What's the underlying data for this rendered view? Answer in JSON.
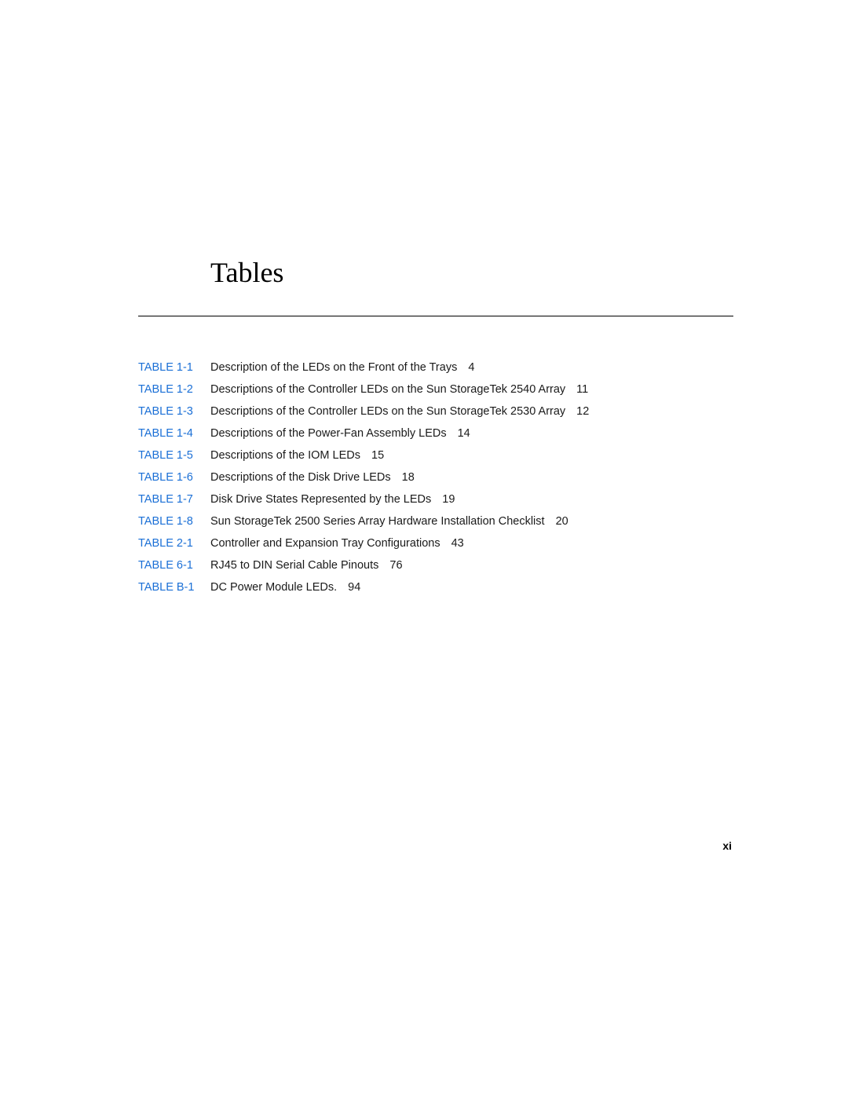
{
  "title": "Tables",
  "page_number": "xi",
  "colors": {
    "link": "#1a6fd6",
    "text": "#1a1a1a",
    "rule": "#000000",
    "background": "#ffffff"
  },
  "typography": {
    "title_font": "Palatino Linotype",
    "title_size_pt": 27,
    "body_font": "Arial",
    "body_size_pt": 11,
    "pageno_size_pt": 10,
    "pageno_weight": "bold"
  },
  "entries": [
    {
      "label": "TABLE 1-1",
      "desc": "Description of the LEDs on the Front of the Trays",
      "page": "4"
    },
    {
      "label": "TABLE 1-2",
      "desc": "Descriptions of the Controller LEDs on the Sun StorageTek 2540 Array",
      "page": "11"
    },
    {
      "label": "TABLE 1-3",
      "desc": "Descriptions of the Controller LEDs on the Sun StorageTek 2530 Array",
      "page": "12"
    },
    {
      "label": "TABLE 1-4",
      "desc": "Descriptions of the Power-Fan Assembly LEDs",
      "page": "14"
    },
    {
      "label": "TABLE 1-5",
      "desc": "Descriptions of the IOM LEDs",
      "page": "15"
    },
    {
      "label": "TABLE 1-6",
      "desc": "Descriptions of the Disk Drive LEDs",
      "page": "18"
    },
    {
      "label": "TABLE 1-7",
      "desc": "Disk Drive States Represented by the LEDs",
      "page": "19"
    },
    {
      "label": "TABLE 1-8",
      "desc": "Sun StorageTek 2500 Series Array Hardware Installation Checklist",
      "page": "20"
    },
    {
      "label": "TABLE 2-1",
      "desc": "Controller and Expansion Tray Configurations",
      "page": "43"
    },
    {
      "label": "TABLE 6-1",
      "desc": " RJ45 to DIN Serial Cable Pinouts",
      "page": "76"
    },
    {
      "label": "TABLE B-1",
      "desc": "DC Power Module LEDs.",
      "page": "94"
    }
  ]
}
